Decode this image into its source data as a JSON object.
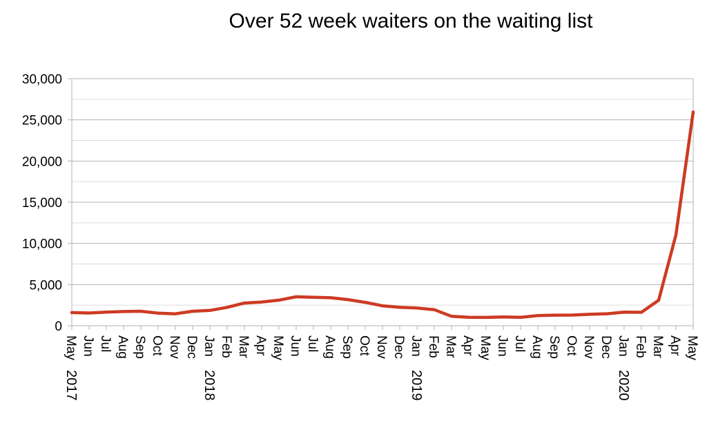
{
  "chart_data": {
    "type": "line",
    "title": "Over 52 week waiters on the waiting list",
    "xlabel": "",
    "ylabel": "",
    "ylim": [
      0,
      30000
    ],
    "yticks": [
      0,
      5000,
      10000,
      15000,
      20000,
      25000,
      30000
    ],
    "ytick_labels": [
      "0",
      "5,000",
      "10,000",
      "15,000",
      "20,000",
      "25,000",
      "30,000"
    ],
    "grid": true,
    "legend": "none",
    "categories": [
      "May 2017",
      "Jun",
      "Jul",
      "Aug",
      "Sep",
      "Oct",
      "Nov",
      "Dec",
      "Jan 2018",
      "Feb",
      "Mar",
      "Apr",
      "May",
      "Jun",
      "Jul",
      "Aug",
      "Sep",
      "Oct",
      "Nov",
      "Dec",
      "Jan 2019",
      "Feb",
      "Mar",
      "Apr",
      "May",
      "Jun",
      "Jul",
      "Aug",
      "Sep",
      "Oct",
      "Nov",
      "Dec",
      "Jan 2020",
      "Feb",
      "Mar",
      "Apr",
      "May"
    ],
    "month_labels": [
      "May",
      "Jun",
      "Jul",
      "Aug",
      "Sep",
      "Oct",
      "Nov",
      "Dec",
      "Jan",
      "Feb",
      "Mar",
      "Apr",
      "May",
      "Jun",
      "Jul",
      "Aug",
      "Sep",
      "Oct",
      "Nov",
      "Dec",
      "Jan",
      "Feb",
      "Mar",
      "Apr",
      "May",
      "Jun",
      "Jul",
      "Aug",
      "Sep",
      "Oct",
      "Nov",
      "Dec",
      "Jan",
      "Feb",
      "Mar",
      "Apr",
      "May"
    ],
    "year_labels": [
      {
        "index": 0,
        "text": "2017"
      },
      {
        "index": 8,
        "text": "2018"
      },
      {
        "index": 20,
        "text": "2019"
      },
      {
        "index": 32,
        "text": "2020"
      }
    ],
    "series": [
      {
        "color": "#cc3b22",
        "values": [
          1600,
          1550,
          1650,
          1730,
          1760,
          1530,
          1450,
          1760,
          1860,
          2240,
          2760,
          2880,
          3110,
          3520,
          3450,
          3400,
          3180,
          2840,
          2420,
          2240,
          2150,
          1950,
          1150,
          1020,
          1010,
          1070,
          1020,
          1230,
          1290,
          1300,
          1390,
          1460,
          1650,
          1630,
          3100,
          11040,
          25950
        ]
      }
    ]
  }
}
